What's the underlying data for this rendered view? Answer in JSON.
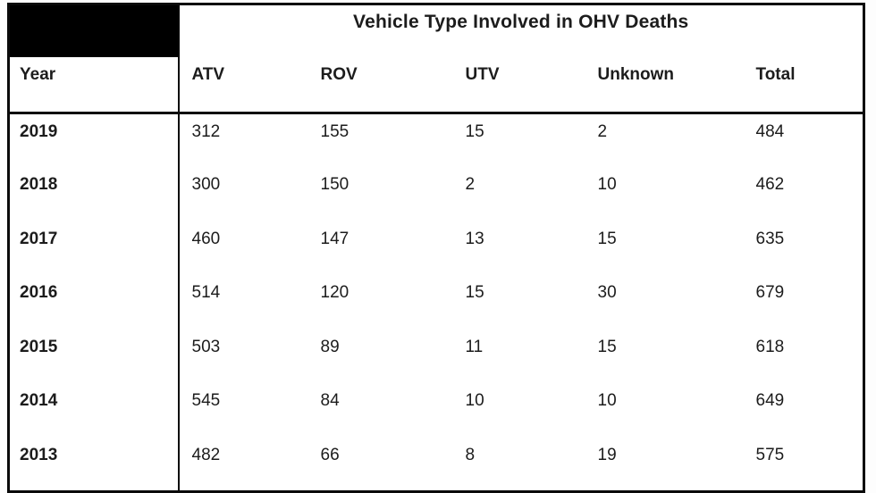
{
  "chart_data": {
    "type": "table",
    "title": "Vehicle Type Involved in OHV Deaths",
    "columns": [
      "Year",
      "ATV",
      "ROV",
      "UTV",
      "Unknown",
      "Total"
    ],
    "rows": [
      [
        "2019",
        "312",
        "155",
        "15",
        "2",
        "484"
      ],
      [
        "2018",
        "300",
        "150",
        "2",
        "10",
        "462"
      ],
      [
        "2017",
        "460",
        "147",
        "13",
        "15",
        "635"
      ],
      [
        "2016",
        "514",
        "120",
        "15",
        "30",
        "679"
      ],
      [
        "2015",
        "503",
        "89",
        "11",
        "15",
        "618"
      ],
      [
        "2014",
        "545",
        "84",
        "10",
        "10",
        "649"
      ],
      [
        "2013",
        "482",
        "66",
        "8",
        "19",
        "575"
      ]
    ],
    "notes": "Top-left header cell is a solid black redacted block; totals are row sums of ATV+ROV+UTV+Unknown"
  },
  "colors": {
    "background": "#ffffff",
    "border": "#0a0a0a",
    "text": "#1c1c1c",
    "redacted_fill": "#000000"
  }
}
